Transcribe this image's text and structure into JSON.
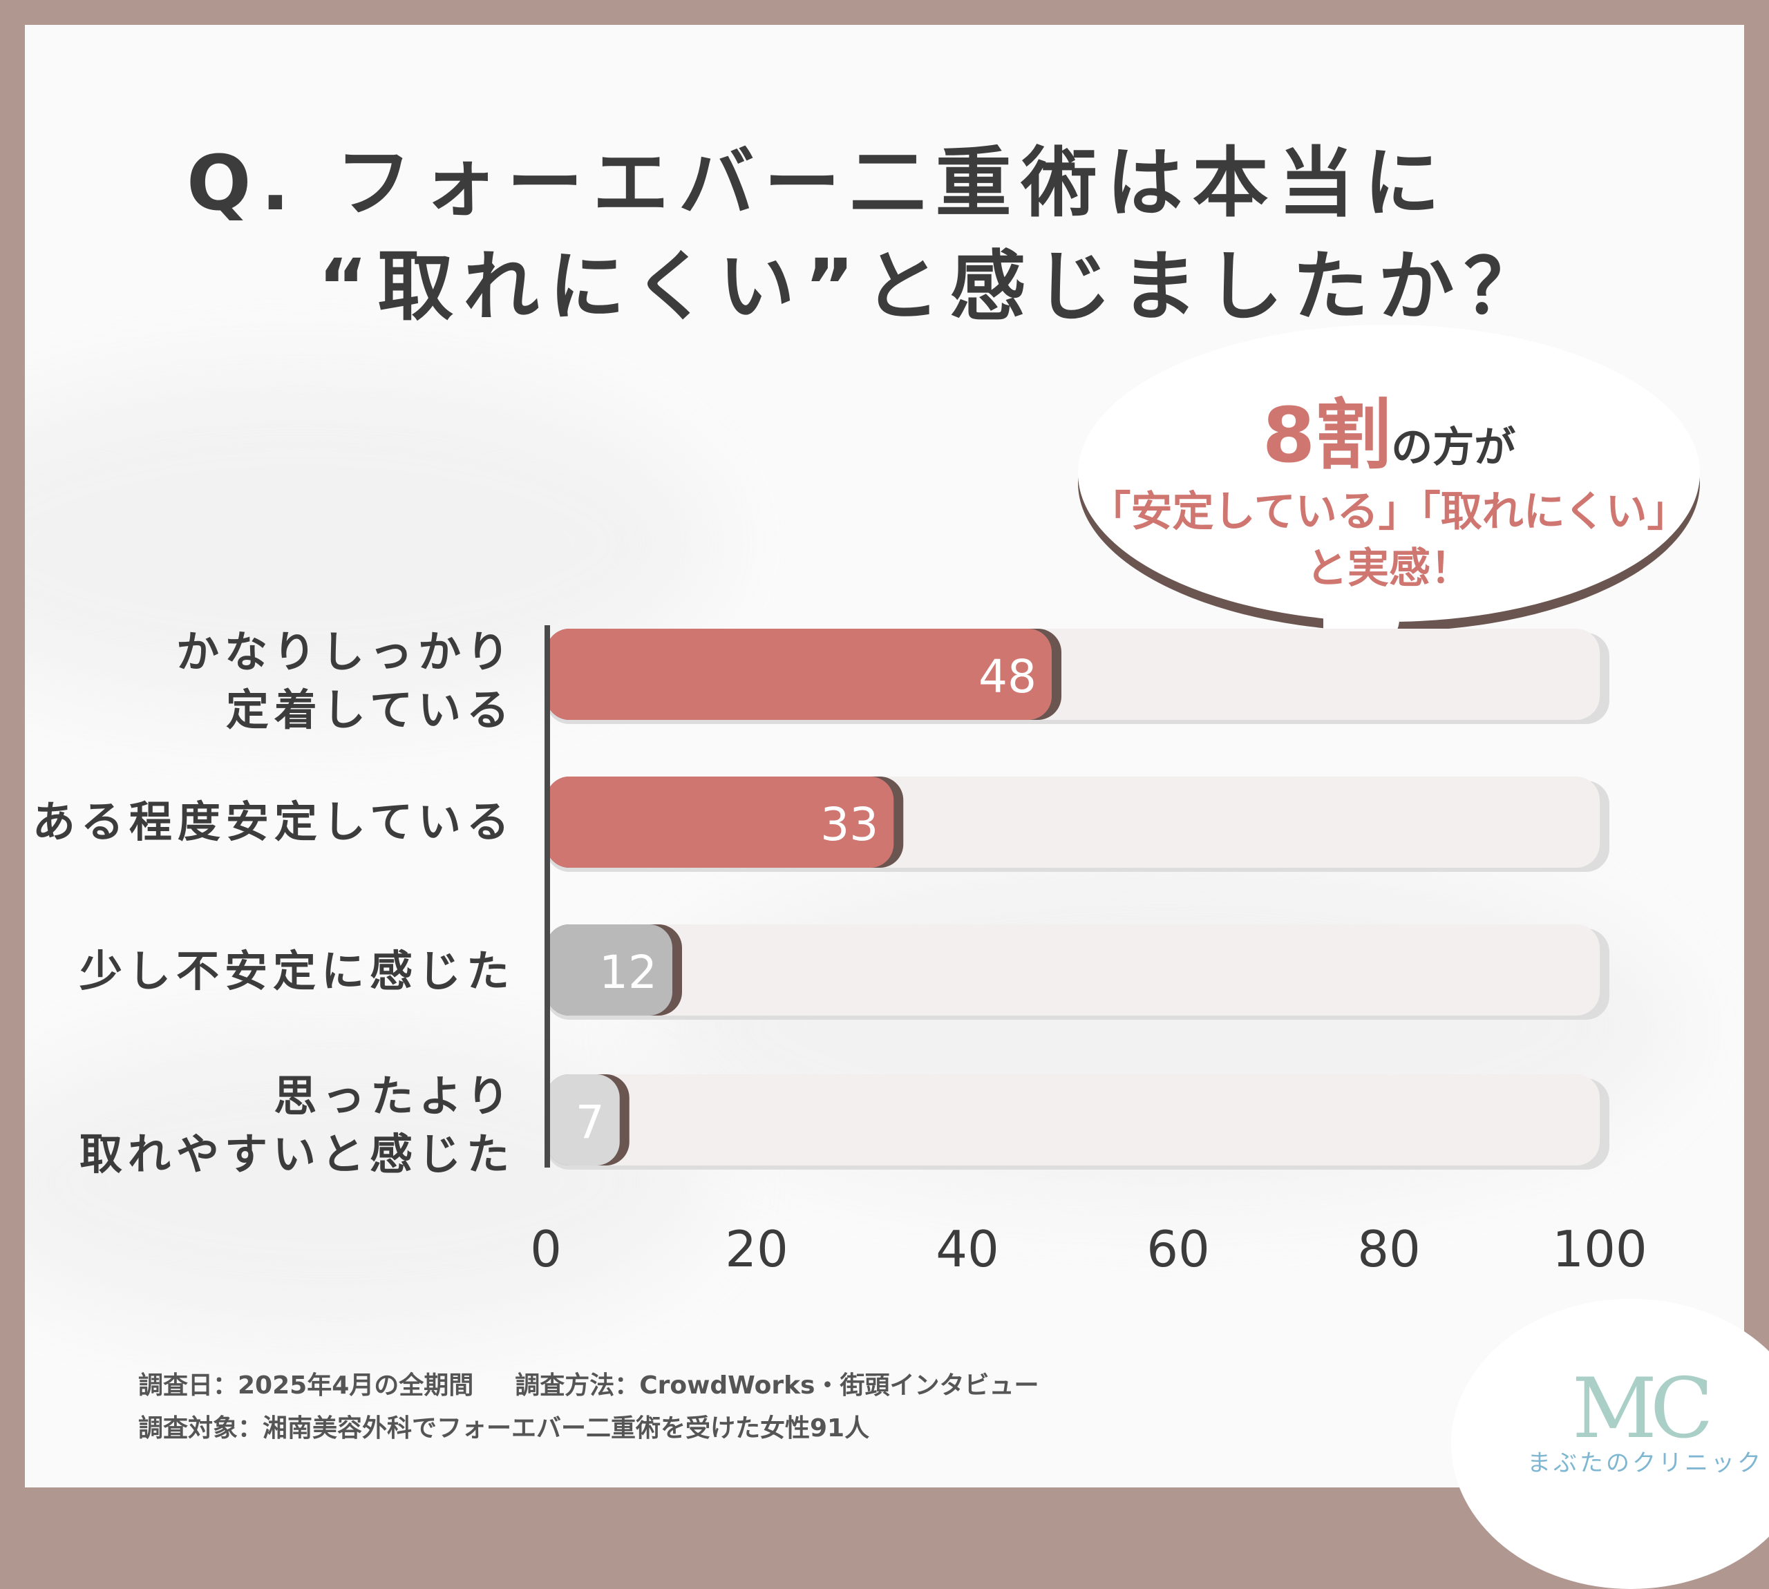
{
  "title": {
    "line1": "Q. フォーエバー二重術は本当に",
    "line2": "“取れにくい”と感じましたか？"
  },
  "callout": {
    "highlight": "8割",
    "rest": "の方が",
    "line2": "「安定している」「取れにくい」",
    "line3": "と実感！"
  },
  "chart_data": {
    "type": "bar",
    "orientation": "horizontal",
    "categories": [
      "かなりしっかり\n定着している",
      "ある程度安定している",
      "少し不安定に感じた",
      "思ったより\n取れやすいと感じた"
    ],
    "values": [
      48,
      33,
      12,
      7
    ],
    "xlim": [
      0,
      100
    ],
    "xticks": [
      "0",
      "20",
      "40",
      "60",
      "80",
      "100"
    ],
    "bar_colors": [
      "#d07670",
      "#d07670",
      "#b9b9b9",
      "#d8d8d8"
    ],
    "grid": false
  },
  "notes": {
    "date": "調査日：2025年4月の全期間",
    "method": "調査方法：CrowdWorks・街頭インタビュー",
    "target": "調査対象：湘南美容外科でフォーエバー二重術を受けた女性91人"
  },
  "logo": {
    "mark": "MC",
    "name": "まぶたのクリニック"
  }
}
